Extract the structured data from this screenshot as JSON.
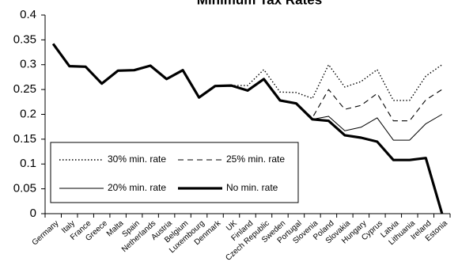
{
  "chart_data": {
    "type": "line",
    "title": "Minimum Tax Rates",
    "xlabel": "",
    "ylabel": "",
    "ylim": [
      0,
      0.4
    ],
    "yticks": [
      "0",
      "0.05",
      "0.1",
      "0.15",
      "0.2",
      "0.25",
      "0.3",
      "0.35",
      "0.4"
    ],
    "grid": false,
    "legend_position": "bottom-left",
    "categories": [
      "Germany",
      "Italy",
      "France",
      "Greece",
      "Malta",
      "Spain",
      "Netherlands",
      "Austria",
      "Belgium",
      "Luxembourg",
      "Denmark",
      "UK",
      "Finland",
      "Czech Republic",
      "Sweden",
      "Portugal",
      "Slovenia",
      "Poland",
      "Slovakia",
      "Hungary",
      "Cyprus",
      "Latvia",
      "Lithuania",
      "Ireland",
      "Estonia"
    ],
    "series": [
      {
        "name": "30% min. rate",
        "style": "dotted",
        "values": [
          0.342,
          0.297,
          0.296,
          0.262,
          0.288,
          0.289,
          0.298,
          0.271,
          0.289,
          0.234,
          0.257,
          0.258,
          0.258,
          0.29,
          0.245,
          0.244,
          0.232,
          0.3,
          0.255,
          0.266,
          0.29,
          0.228,
          0.228,
          0.277,
          0.3
        ]
      },
      {
        "name": "25% min. rate",
        "style": "dashed",
        "values": [
          0.342,
          0.297,
          0.296,
          0.262,
          0.288,
          0.289,
          0.298,
          0.271,
          0.289,
          0.234,
          0.257,
          0.258,
          0.248,
          0.271,
          0.228,
          0.222,
          0.193,
          0.25,
          0.21,
          0.218,
          0.242,
          0.187,
          0.187,
          0.229,
          0.25
        ]
      },
      {
        "name": "20% min. rate",
        "style": "thin",
        "values": [
          0.342,
          0.297,
          0.296,
          0.262,
          0.288,
          0.289,
          0.298,
          0.271,
          0.289,
          0.234,
          0.257,
          0.258,
          0.248,
          0.271,
          0.228,
          0.222,
          0.19,
          0.196,
          0.167,
          0.174,
          0.193,
          0.148,
          0.148,
          0.181,
          0.2
        ]
      },
      {
        "name": "No min. rate",
        "style": "thick",
        "values": [
          0.342,
          0.297,
          0.296,
          0.262,
          0.288,
          0.289,
          0.298,
          0.271,
          0.289,
          0.234,
          0.257,
          0.258,
          0.248,
          0.271,
          0.228,
          0.222,
          0.19,
          0.187,
          0.158,
          0.153,
          0.145,
          0.108,
          0.108,
          0.112,
          0.0
        ]
      }
    ]
  }
}
